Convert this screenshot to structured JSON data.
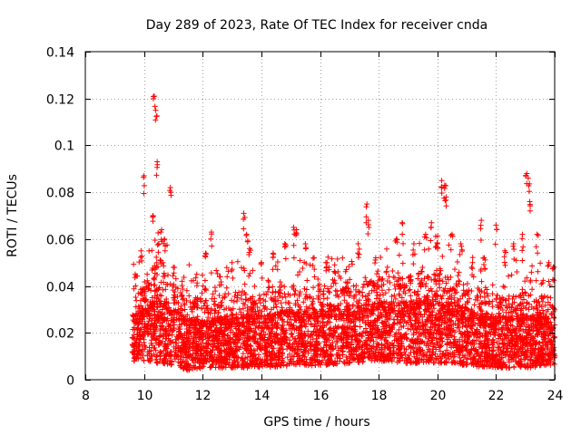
{
  "chart_data": {
    "type": "scatter",
    "title": "Day 289 of 2023, Rate Of TEC Index for receiver cnda",
    "xlabel": "GPS time / hours",
    "ylabel": "ROTI / TECUs",
    "xlim": [
      8,
      24
    ],
    "ylim": [
      0,
      0.14
    ],
    "x_ticks": [
      8,
      10,
      12,
      14,
      16,
      18,
      20,
      22,
      24
    ],
    "y_ticks": [
      0,
      0.02,
      0.04,
      0.06,
      0.08,
      0.1,
      0.12,
      0.14
    ],
    "x_tick_labels": [
      "8",
      "10",
      "12",
      "14",
      "16",
      "18",
      "20",
      "22",
      "24"
    ],
    "y_tick_labels": [
      "0",
      "0.02",
      "0.04",
      "0.06",
      "0.08",
      "0.1",
      "0.12",
      "0.14"
    ],
    "grid": true,
    "marker": "+",
    "marker_color": "#ff0000",
    "series": [
      {
        "name": "ROTI",
        "x": [
          9.7,
          9.9,
          10.0,
          10.35,
          10.4,
          10.45,
          10.6,
          10.9,
          10.3,
          10.5,
          10.7,
          11.0,
          11.3,
          11.8,
          12.1,
          12.3,
          12.6,
          13.0,
          13.4,
          13.5,
          13.6,
          14.0,
          14.4,
          14.8,
          15.1,
          15.2,
          15.5,
          15.8,
          16.2,
          16.5,
          16.9,
          17.3,
          17.6,
          17.65,
          17.9,
          18.3,
          18.6,
          18.8,
          19.2,
          19.6,
          19.8,
          20.0,
          20.15,
          20.25,
          20.3,
          20.5,
          20.8,
          21.2,
          21.5,
          21.6,
          22.0,
          22.3,
          22.6,
          22.9,
          23.05,
          23.1,
          23.15,
          23.4,
          23.8,
          23.95
        ],
        "y": [
          0.045,
          0.055,
          0.087,
          0.121,
          0.115,
          0.093,
          0.064,
          0.082,
          0.07,
          0.058,
          0.06,
          0.048,
          0.042,
          0.045,
          0.054,
          0.063,
          0.044,
          0.05,
          0.071,
          0.062,
          0.056,
          0.05,
          0.054,
          0.058,
          0.065,
          0.064,
          0.058,
          0.052,
          0.05,
          0.049,
          0.047,
          0.058,
          0.075,
          0.068,
          0.052,
          0.048,
          0.06,
          0.067,
          0.058,
          0.062,
          0.067,
          0.058,
          0.085,
          0.083,
          0.078,
          0.062,
          0.058,
          0.05,
          0.068,
          0.052,
          0.066,
          0.055,
          0.058,
          0.062,
          0.088,
          0.086,
          0.076,
          0.062,
          0.05,
          0.048
        ]
      }
    ],
    "dense_band": {
      "x_start": 9.6,
      "x_end": 24,
      "typical_low": 0.005,
      "typical_high": 0.035,
      "segments": [
        {
          "x": 9.6,
          "low": 0.008,
          "high": 0.03
        },
        {
          "x": 10.0,
          "low": 0.008,
          "high": 0.035
        },
        {
          "x": 10.5,
          "low": 0.007,
          "high": 0.045
        },
        {
          "x": 11.0,
          "low": 0.006,
          "high": 0.035
        },
        {
          "x": 11.5,
          "low": 0.004,
          "high": 0.03
        },
        {
          "x": 12.0,
          "low": 0.005,
          "high": 0.03
        },
        {
          "x": 13.0,
          "low": 0.005,
          "high": 0.032
        },
        {
          "x": 14.0,
          "low": 0.005,
          "high": 0.032
        },
        {
          "x": 15.0,
          "low": 0.006,
          "high": 0.035
        },
        {
          "x": 16.0,
          "low": 0.006,
          "high": 0.035
        },
        {
          "x": 17.0,
          "low": 0.007,
          "high": 0.035
        },
        {
          "x": 18.0,
          "low": 0.008,
          "high": 0.038
        },
        {
          "x": 19.0,
          "low": 0.007,
          "high": 0.038
        },
        {
          "x": 20.0,
          "low": 0.007,
          "high": 0.042
        },
        {
          "x": 21.0,
          "low": 0.006,
          "high": 0.035
        },
        {
          "x": 22.0,
          "low": 0.005,
          "high": 0.03
        },
        {
          "x": 23.0,
          "low": 0.005,
          "high": 0.032
        },
        {
          "x": 24.0,
          "low": 0.006,
          "high": 0.03
        }
      ]
    }
  }
}
